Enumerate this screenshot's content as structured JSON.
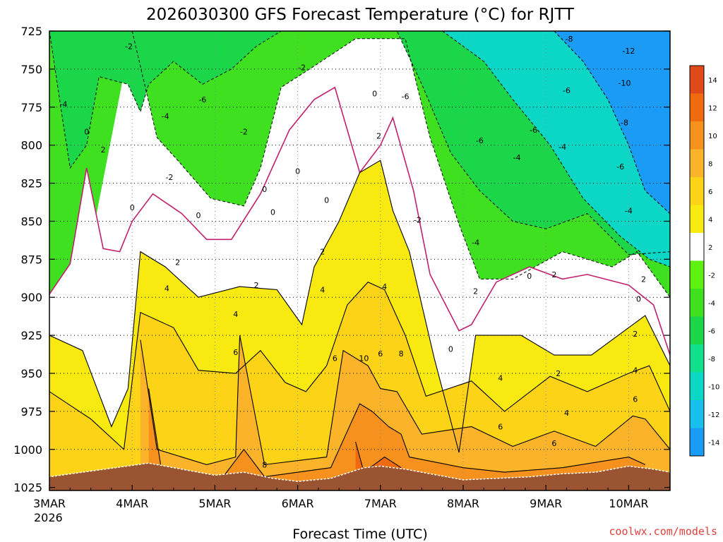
{
  "chart_data": {
    "type": "heatmap",
    "title": "2026030300 GFS Forecast Temperature (°C) for RJTT",
    "xlabel": "Forecast Time (UTC)",
    "ylabel": "",
    "credit": "coolwx.com/models",
    "x_start_year": "2026",
    "x_ticks": [
      "3MAR",
      "4MAR",
      "5MAR",
      "6MAR",
      "7MAR",
      "8MAR",
      "9MAR",
      "10MAR"
    ],
    "x_range_days": [
      0,
      7.5
    ],
    "y_ticks": [
      725,
      750,
      775,
      800,
      825,
      850,
      875,
      900,
      925,
      950,
      975,
      1000,
      1025
    ],
    "y_range_hpa": [
      725,
      1027
    ],
    "surface_pressure": [
      [
        0,
        1018
      ],
      [
        0.4,
        1015
      ],
      [
        0.8,
        1012
      ],
      [
        1.2,
        1009
      ],
      [
        1.6,
        1013
      ],
      [
        2.0,
        1017
      ],
      [
        2.35,
        1015
      ],
      [
        2.7,
        1019
      ],
      [
        3.0,
        1021
      ],
      [
        3.4,
        1019
      ],
      [
        3.8,
        1012
      ],
      [
        4.0,
        1011
      ],
      [
        4.3,
        1013
      ],
      [
        4.6,
        1016
      ],
      [
        5.0,
        1020
      ],
      [
        5.4,
        1019
      ],
      [
        5.8,
        1018
      ],
      [
        6.2,
        1016
      ],
      [
        6.6,
        1015
      ],
      [
        7.0,
        1011
      ],
      [
        7.3,
        1013
      ],
      [
        7.5,
        1015
      ]
    ],
    "colorbar": {
      "levels": [
        14,
        12,
        10,
        8,
        6,
        4,
        2,
        -2,
        -4,
        -6,
        -8,
        -10,
        -12,
        -14
      ],
      "colors": [
        "#e04a1a",
        "#f06a10",
        "#f7911e",
        "#fbb42a",
        "#fcd317",
        "#f8ea10",
        "#ffffff",
        "#5ef010",
        "#3ee020",
        "#1cd64a",
        "#10e08c",
        "#0cd6c6",
        "#18bfec",
        "#1a9cf6"
      ]
    },
    "series": [
      {
        "name": "contour -12",
        "values": [
          [
            6.1,
            725
          ],
          [
            6.45,
            745
          ],
          [
            6.75,
            770
          ],
          [
            7.0,
            800
          ],
          [
            7.2,
            830
          ],
          [
            7.5,
            845
          ]
        ]
      },
      {
        "name": "contour -8",
        "values": [
          [
            4.75,
            725
          ],
          [
            5.25,
            745
          ],
          [
            5.6,
            770
          ],
          [
            6.05,
            800
          ],
          [
            6.45,
            835
          ],
          [
            6.9,
            860
          ],
          [
            7.25,
            875
          ],
          [
            7.5,
            880
          ]
        ]
      },
      {
        "name": "contour -4",
        "values": [
          [
            0,
            725
          ],
          [
            0.15,
            780
          ],
          [
            0.25,
            815
          ],
          [
            0.45,
            800
          ],
          [
            0.6,
            755
          ],
          [
            0.95,
            760
          ],
          [
            1.1,
            778
          ],
          [
            1.2,
            760
          ],
          [
            1.5,
            745
          ],
          [
            1.85,
            760
          ],
          [
            2.2,
            750
          ],
          [
            2.5,
            735
          ],
          [
            2.8,
            725
          ],
          [
            4.2,
            725
          ],
          [
            4.5,
            760
          ],
          [
            4.85,
            805
          ],
          [
            5.2,
            830
          ],
          [
            5.6,
            850
          ],
          [
            6.0,
            855
          ],
          [
            6.5,
            845
          ],
          [
            7.0,
            872
          ],
          [
            7.5,
            870
          ]
        ]
      },
      {
        "name": "contour -2",
        "values": [
          [
            1.0,
            725
          ],
          [
            1.3,
            795
          ],
          [
            1.55,
            810
          ],
          [
            1.95,
            835
          ],
          [
            2.35,
            840
          ],
          [
            2.55,
            815
          ],
          [
            2.8,
            762
          ],
          [
            3.2,
            748
          ],
          [
            3.7,
            730
          ],
          [
            4.3,
            730
          ],
          [
            4.6,
            795
          ],
          [
            4.95,
            852
          ],
          [
            5.2,
            888
          ],
          [
            5.6,
            888
          ],
          [
            6.2,
            870
          ],
          [
            6.8,
            880
          ],
          [
            7.1,
            870
          ],
          [
            7.5,
            900
          ]
        ]
      },
      {
        "name": "contour 0",
        "values": [
          [
            0,
            898
          ],
          [
            0.25,
            878
          ],
          [
            0.45,
            815
          ],
          [
            0.65,
            868
          ],
          [
            0.85,
            870
          ],
          [
            1.0,
            850
          ],
          [
            1.25,
            832
          ],
          [
            1.6,
            845
          ],
          [
            1.9,
            862
          ],
          [
            2.2,
            862
          ],
          [
            2.55,
            832
          ],
          [
            2.9,
            790
          ],
          [
            3.2,
            770
          ],
          [
            3.45,
            762
          ],
          [
            3.75,
            818
          ],
          [
            4.0,
            800
          ],
          [
            4.15,
            782
          ],
          [
            4.4,
            830
          ],
          [
            4.6,
            885
          ],
          [
            4.95,
            922
          ],
          [
            5.1,
            918
          ],
          [
            5.4,
            890
          ],
          [
            5.8,
            880
          ],
          [
            6.2,
            888
          ],
          [
            6.5,
            885
          ],
          [
            7.0,
            892
          ],
          [
            7.3,
            905
          ],
          [
            7.5,
            938
          ]
        ]
      },
      {
        "name": "contour 2",
        "values": [
          [
            0,
            925
          ],
          [
            0.4,
            935
          ],
          [
            0.75,
            985
          ],
          [
            0.95,
            960
          ],
          [
            1.1,
            870
          ],
          [
            1.4,
            880
          ],
          [
            1.8,
            900
          ],
          [
            2.3,
            893
          ],
          [
            2.75,
            895
          ],
          [
            3.05,
            918
          ],
          [
            3.2,
            880
          ],
          [
            3.5,
            850
          ],
          [
            3.75,
            818
          ],
          [
            4.0,
            810
          ],
          [
            4.15,
            843
          ],
          [
            4.35,
            870
          ],
          [
            4.65,
            940
          ],
          [
            4.95,
            1002
          ],
          [
            5.15,
            925
          ],
          [
            5.7,
            925
          ],
          [
            6.1,
            938
          ],
          [
            6.55,
            938
          ],
          [
            7.0,
            920
          ],
          [
            7.2,
            912
          ],
          [
            7.5,
            945
          ]
        ]
      },
      {
        "name": "contour 4",
        "values": [
          [
            0,
            962
          ],
          [
            0.5,
            980
          ],
          [
            0.9,
            1000
          ],
          [
            1.1,
            910
          ],
          [
            1.5,
            920
          ],
          [
            1.8,
            948
          ],
          [
            2.25,
            950
          ],
          [
            2.55,
            935
          ],
          [
            2.85,
            956
          ],
          [
            3.1,
            962
          ],
          [
            3.35,
            945
          ],
          [
            3.6,
            905
          ],
          [
            3.85,
            890
          ],
          [
            4.05,
            895
          ],
          [
            4.3,
            925
          ],
          [
            4.55,
            965
          ],
          [
            5.1,
            955
          ],
          [
            5.5,
            975
          ],
          [
            6.05,
            952
          ],
          [
            6.5,
            962
          ],
          [
            7.0,
            950
          ],
          [
            7.25,
            945
          ],
          [
            7.5,
            975
          ]
        ]
      },
      {
        "name": "contour 6",
        "values": [
          [
            1.1,
            928
          ],
          [
            1.3,
            1000
          ],
          [
            1.9,
            1010
          ],
          [
            2.25,
            1005
          ],
          [
            2.3,
            925
          ],
          [
            2.6,
            1010
          ],
          [
            3.35,
            1005
          ],
          [
            3.55,
            935
          ],
          [
            3.85,
            945
          ],
          [
            4.0,
            960
          ],
          [
            4.2,
            962
          ],
          [
            4.5,
            990
          ],
          [
            5.1,
            985
          ],
          [
            5.6,
            998
          ],
          [
            6.1,
            988
          ],
          [
            6.6,
            998
          ],
          [
            7.05,
            978
          ],
          [
            7.2,
            980
          ],
          [
            7.5,
            1000
          ]
        ]
      },
      {
        "name": "contour 8",
        "values": [
          [
            1.2,
            960
          ],
          [
            1.35,
            1012
          ],
          [
            2.1,
            1018
          ],
          [
            2.35,
            1000
          ],
          [
            2.6,
            1018
          ],
          [
            3.4,
            1012
          ],
          [
            3.75,
            970
          ],
          [
            3.9,
            975
          ],
          [
            4.1,
            985
          ],
          [
            4.25,
            990
          ],
          [
            4.35,
            1005
          ],
          [
            5.0,
            1012
          ],
          [
            5.5,
            1015
          ],
          [
            6.2,
            1012
          ],
          [
            7.0,
            1005
          ],
          [
            7.2,
            1010
          ]
        ]
      },
      {
        "name": "contour 10",
        "values": [
          [
            3.7,
            995
          ],
          [
            3.8,
            1015
          ],
          [
            4.05,
            1005
          ],
          [
            4.25,
            1012
          ]
        ]
      }
    ],
    "contour_labels": [
      {
        "text": "-2",
        "x": 0.96,
        "y": 735
      },
      {
        "text": "-4",
        "x": 0.17,
        "y": 773
      },
      {
        "text": "0",
        "x": 0.45,
        "y": 791
      },
      {
        "text": "2",
        "x": 0.65,
        "y": 803
      },
      {
        "text": "0",
        "x": 1.0,
        "y": 841
      },
      {
        "text": "-4",
        "x": 1.4,
        "y": 781
      },
      {
        "text": "-6",
        "x": 1.85,
        "y": 770
      },
      {
        "text": "-2",
        "x": 1.45,
        "y": 821
      },
      {
        "text": "0",
        "x": 1.8,
        "y": 846
      },
      {
        "text": "2",
        "x": 1.55,
        "y": 877
      },
      {
        "text": "4",
        "x": 1.42,
        "y": 894
      },
      {
        "text": "-2",
        "x": 2.35,
        "y": 791
      },
      {
        "text": "-2",
        "x": 3.05,
        "y": 749
      },
      {
        "text": "0",
        "x": 3.0,
        "y": 817
      },
      {
        "text": "0",
        "x": 2.6,
        "y": 829
      },
      {
        "text": "0",
        "x": 2.7,
        "y": 844
      },
      {
        "text": "0",
        "x": 3.35,
        "y": 836
      },
      {
        "text": "2",
        "x": 2.5,
        "y": 892
      },
      {
        "text": "4",
        "x": 2.25,
        "y": 911
      },
      {
        "text": "6",
        "x": 2.25,
        "y": 936
      },
      {
        "text": "8",
        "x": 2.6,
        "y": 1010
      },
      {
        "text": "2",
        "x": 3.3,
        "y": 870
      },
      {
        "text": "4",
        "x": 3.3,
        "y": 895
      },
      {
        "text": "6",
        "x": 3.45,
        "y": 940
      },
      {
        "text": "10",
        "x": 3.8,
        "y": 940
      },
      {
        "text": "6",
        "x": 4.0,
        "y": 937
      },
      {
        "text": "8",
        "x": 4.25,
        "y": 937
      },
      {
        "text": "4",
        "x": 4.05,
        "y": 893
      },
      {
        "text": "2",
        "x": 3.98,
        "y": 794
      },
      {
        "text": "0",
        "x": 3.93,
        "y": 766
      },
      {
        "text": "-6",
        "x": 4.3,
        "y": 768
      },
      {
        "text": "-2",
        "x": 4.45,
        "y": 849
      },
      {
        "text": "-4",
        "x": 5.15,
        "y": 864
      },
      {
        "text": "2",
        "x": 5.15,
        "y": 896
      },
      {
        "text": "0",
        "x": 4.85,
        "y": 934
      },
      {
        "text": "4",
        "x": 5.45,
        "y": 953
      },
      {
        "text": "6",
        "x": 5.45,
        "y": 985
      },
      {
        "text": "6",
        "x": 6.1,
        "y": 996
      },
      {
        "text": "4",
        "x": 6.25,
        "y": 976
      },
      {
        "text": "2",
        "x": 6.15,
        "y": 950
      },
      {
        "text": "0",
        "x": 5.8,
        "y": 886
      },
      {
        "text": "2",
        "x": 6.1,
        "y": 885
      },
      {
        "text": "-4",
        "x": 5.65,
        "y": 808
      },
      {
        "text": "-6",
        "x": 5.2,
        "y": 797
      },
      {
        "text": "-6",
        "x": 5.85,
        "y": 790
      },
      {
        "text": "-4",
        "x": 6.2,
        "y": 801
      },
      {
        "text": "-6",
        "x": 6.25,
        "y": 764
      },
      {
        "text": "-8",
        "x": 6.28,
        "y": 730
      },
      {
        "text": "-6",
        "x": 6.9,
        "y": 814
      },
      {
        "text": "-8",
        "x": 6.95,
        "y": 785
      },
      {
        "text": "-10",
        "x": 6.95,
        "y": 759
      },
      {
        "text": "-12",
        "x": 7.0,
        "y": 738
      },
      {
        "text": "-4",
        "x": 7.0,
        "y": 843
      },
      {
        "text": "2",
        "x": 7.18,
        "y": 888
      },
      {
        "text": "0",
        "x": 7.12,
        "y": 901
      },
      {
        "text": "2",
        "x": 7.08,
        "y": 924
      },
      {
        "text": "4",
        "x": 7.08,
        "y": 948
      },
      {
        "text": "6",
        "x": 7.08,
        "y": 967
      }
    ]
  }
}
